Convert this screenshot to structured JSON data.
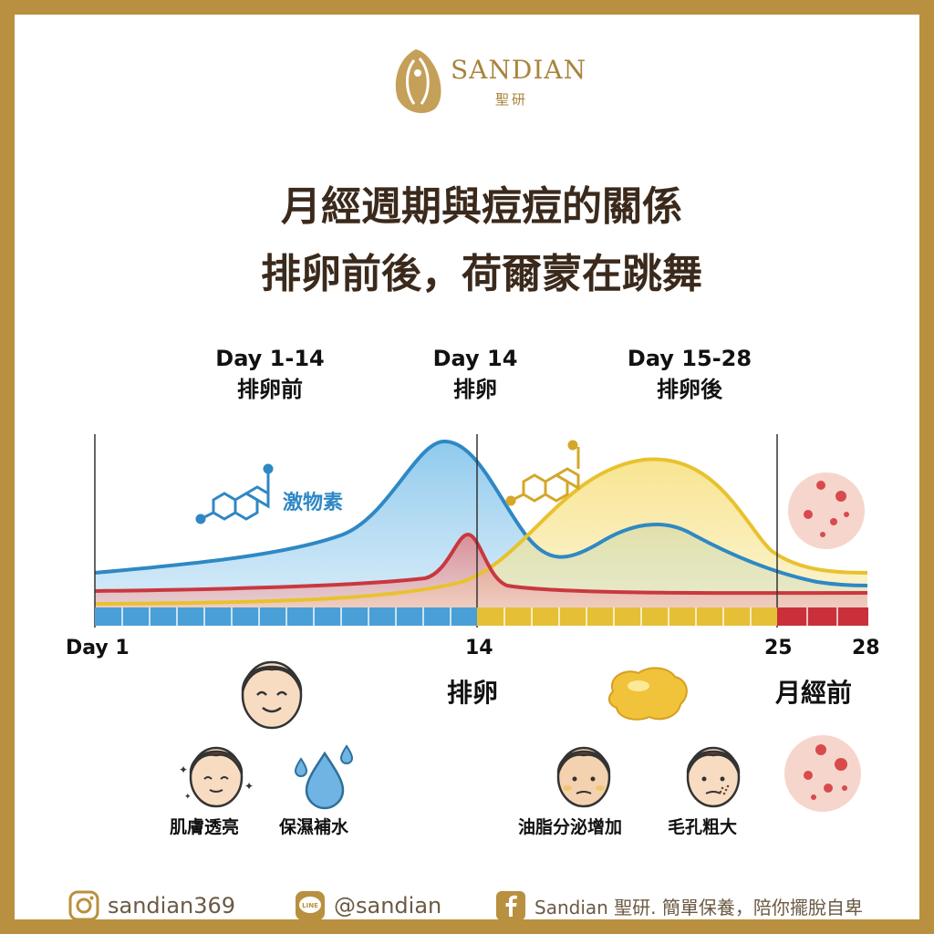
{
  "brand": {
    "name": "SANDIAN",
    "sub": "聖研"
  },
  "title": {
    "line1": "月經週期與痘痘的關係",
    "line2": "排卵前後，荷爾蒙在跳舞"
  },
  "phases": [
    {
      "days": "Day 1-14",
      "label": "排卵前"
    },
    {
      "days": "Day 14",
      "label": "排卵"
    },
    {
      "days": "Day 15-28",
      "label": "排卵後"
    }
  ],
  "chart": {
    "hormone_label": "激物素",
    "axis": {
      "start": "Day 1",
      "ovulation": "14",
      "premenstrual_start": "25",
      "end": "28"
    },
    "markers": {
      "ovulation": "排卵",
      "premenstrual": "月經前"
    },
    "colors": {
      "estrogen": "#2f88c4",
      "lh": "#c9383f",
      "progesterone": "#e8c22e",
      "border": "#b8903f"
    }
  },
  "effects": [
    {
      "label": "肌膚透亮",
      "icon": "sparkle-face-icon"
    },
    {
      "label": "保濕補水",
      "icon": "water-drop-icon"
    },
    {
      "label": "油脂分泌增加",
      "icon": "oily-face-icon"
    },
    {
      "label": "毛孔粗大",
      "icon": "pore-face-icon"
    }
  ],
  "footer": {
    "instagram": "sandian369",
    "line": "@sandian",
    "facebook": "Sandian 聖研. 簡單保養，陪你擺脫自卑",
    "line_icon_text": "LINE"
  }
}
